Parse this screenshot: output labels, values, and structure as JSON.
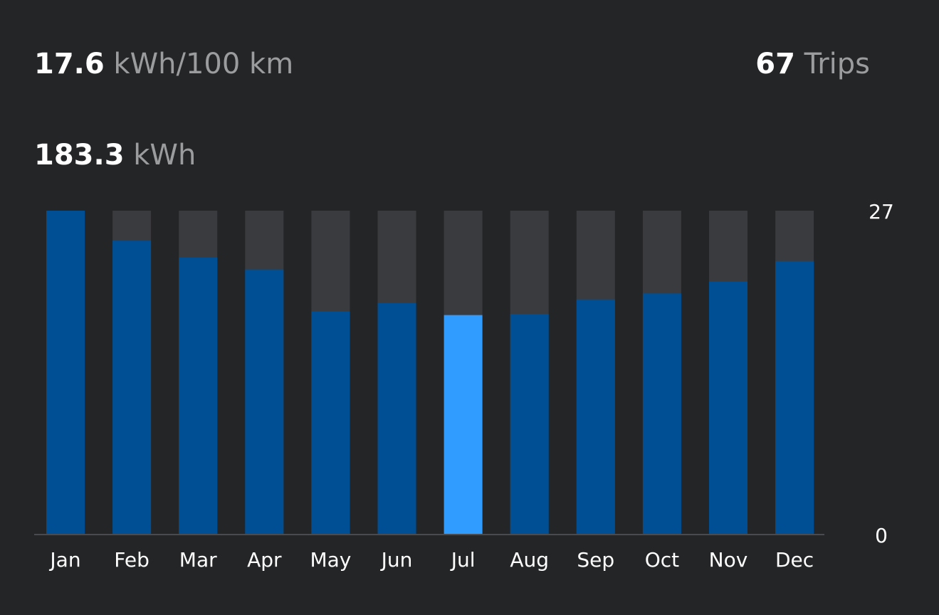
{
  "summary": {
    "efficiency": {
      "value": "17.6",
      "unit": "kWh/100 km"
    },
    "trips": {
      "value": "67",
      "unit": "Trips"
    },
    "energy": {
      "value": "183.3",
      "unit": "kWh"
    }
  },
  "colors": {
    "bar": "#004f94",
    "bar_selected": "#309cff",
    "bar_track": "#3a3b3e",
    "axis": "#4a4b4e"
  },
  "chart_data": {
    "type": "bar",
    "categories": [
      "Jan",
      "Feb",
      "Mar",
      "Apr",
      "May",
      "Jun",
      "Jul",
      "Aug",
      "Sep",
      "Oct",
      "Nov",
      "Dec"
    ],
    "values": [
      27,
      24.5,
      23.1,
      22.1,
      18.6,
      19.3,
      18.3,
      18.4,
      19.6,
      20.1,
      21.1,
      22.8
    ],
    "selected_category": "Jul",
    "ylim": [
      0,
      27
    ],
    "yticks": [
      "0",
      "27"
    ],
    "y_axis_side": "right",
    "grid": false,
    "legend": "none"
  }
}
